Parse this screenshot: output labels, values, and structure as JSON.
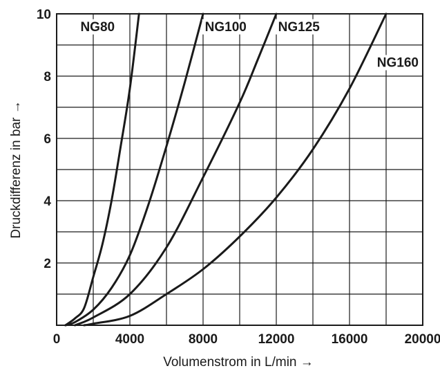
{
  "chart_data": {
    "type": "line",
    "title": "",
    "xlabel": "Volumenstrom in L/min →",
    "ylabel": "Druckdifferenz in bar →",
    "xlim": [
      0,
      20000
    ],
    "ylim": [
      0,
      10
    ],
    "x_ticks": [
      0,
      4000,
      8000,
      12000,
      16000,
      20000
    ],
    "x_tick_labels": [
      "0",
      "4000",
      "8000",
      "12000",
      "16000",
      "20000"
    ],
    "y_ticks": [
      2,
      4,
      6,
      8,
      10
    ],
    "y_tick_labels": [
      "2",
      "4",
      "6",
      "8",
      "10"
    ],
    "grid": true,
    "legend": "none",
    "line_color": "#1a1a1a",
    "grid_color": "#1a1a1a",
    "series": [
      {
        "name": "NG80",
        "x": [
          480,
          1000,
          1500,
          2000,
          2500,
          3000,
          3500,
          4000,
          4500
        ],
        "y": [
          0,
          0.22,
          0.55,
          1.55,
          2.6,
          4.0,
          5.75,
          7.6,
          10.0
        ]
      },
      {
        "name": "NG100",
        "x": [
          480,
          1000,
          2000,
          3000,
          4000,
          5000,
          6000,
          7000,
          8000
        ],
        "y": [
          0,
          0.1,
          0.5,
          1.2,
          2.25,
          3.85,
          5.75,
          7.8,
          10.0
        ]
      },
      {
        "name": "NG125",
        "x": [
          1000,
          2000,
          4000,
          6000,
          8000,
          10000,
          11000,
          12000
        ],
        "y": [
          0,
          0.25,
          1.0,
          2.5,
          4.75,
          7.15,
          8.55,
          10.0
        ]
      },
      {
        "name": "NG160",
        "x": [
          1500,
          2000,
          4000,
          6000,
          8000,
          10000,
          12000,
          14000,
          16000,
          18000
        ],
        "y": [
          0,
          0.05,
          0.3,
          1.0,
          1.8,
          2.85,
          4.1,
          5.65,
          7.6,
          10.0
        ]
      }
    ]
  }
}
